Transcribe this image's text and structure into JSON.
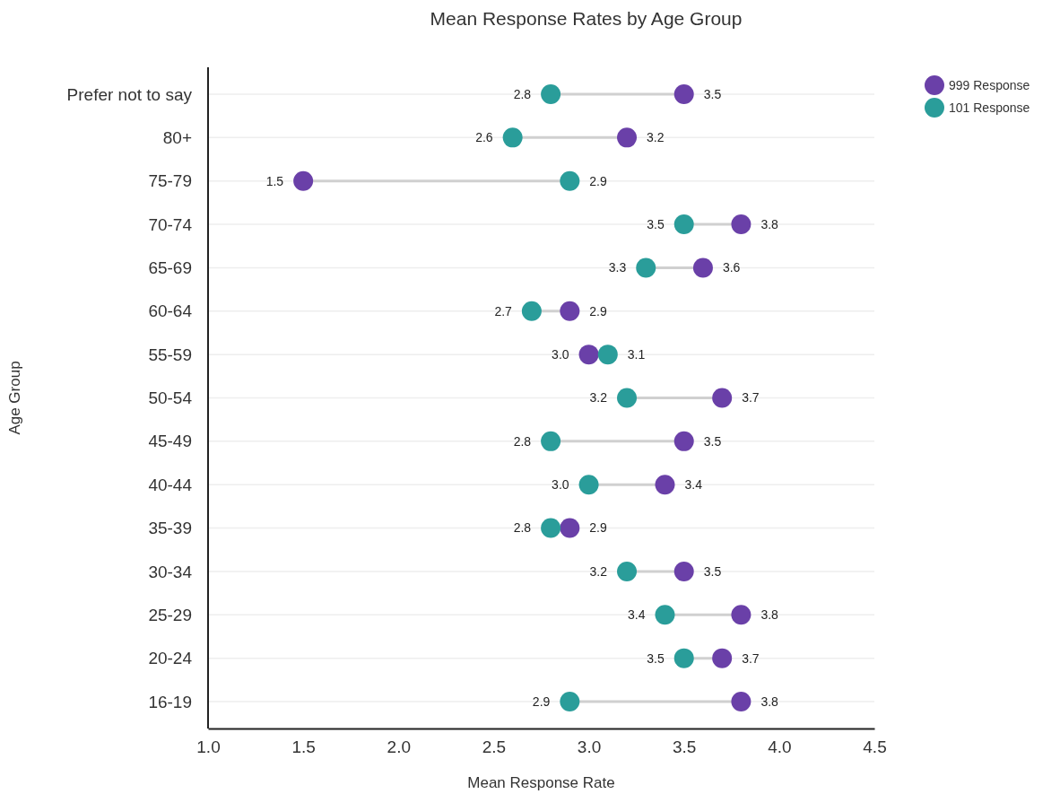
{
  "chart_data": {
    "type": "scatter",
    "orientation": "horizontal",
    "title": "Mean Response Rates by Age Group",
    "xlabel": "Mean Response Rate",
    "ylabel": "Age Group",
    "categories": [
      "Prefer not to say",
      "80+",
      "75-79",
      "70-74",
      "65-69",
      "60-64",
      "55-59",
      "50-54",
      "45-49",
      "40-44",
      "35-39",
      "30-34",
      "25-29",
      "20-24",
      "16-19"
    ],
    "series": [
      {
        "name": "999 Response",
        "color": "#6a40a8",
        "values": [
          3.5,
          3.2,
          1.5,
          3.8,
          3.6,
          2.9,
          3.0,
          3.7,
          3.5,
          3.4,
          2.9,
          3.5,
          3.8,
          3.7,
          3.8
        ],
        "value_labels": [
          "3.5",
          "3.2",
          "1.5",
          "3.8",
          "3.6",
          "2.9",
          "3.0",
          "3.7",
          "3.5",
          "3.4",
          "2.9",
          "3.5",
          "3.8",
          "3.7",
          "3.8"
        ]
      },
      {
        "name": "101 Response",
        "color": "#2a9d9a",
        "values": [
          2.8,
          2.6,
          2.9,
          3.5,
          3.3,
          2.7,
          3.1,
          3.2,
          2.8,
          3.0,
          2.8,
          3.2,
          3.4,
          3.5,
          2.9
        ],
        "value_labels": [
          "2.8",
          "2.6",
          "2.9",
          "3.5",
          "3.3",
          "2.7",
          "3.1",
          "3.2",
          "2.8",
          "3.0",
          "2.8",
          "3.2",
          "3.4",
          "3.5",
          "2.9"
        ]
      }
    ],
    "xlim": [
      1.0,
      4.5
    ],
    "xticks": [
      {
        "value": 1.0,
        "label": "1.0"
      },
      {
        "value": 1.5,
        "label": "1.5"
      },
      {
        "value": 2.0,
        "label": "2.0"
      },
      {
        "value": 2.5,
        "label": "2.5"
      },
      {
        "value": 3.0,
        "label": "3.0"
      },
      {
        "value": 3.5,
        "label": "3.5"
      },
      {
        "value": 4.0,
        "label": "4.0"
      },
      {
        "value": 4.5,
        "label": "4.5"
      }
    ],
    "grid": "y",
    "legend": "top right",
    "marker": "circle"
  }
}
